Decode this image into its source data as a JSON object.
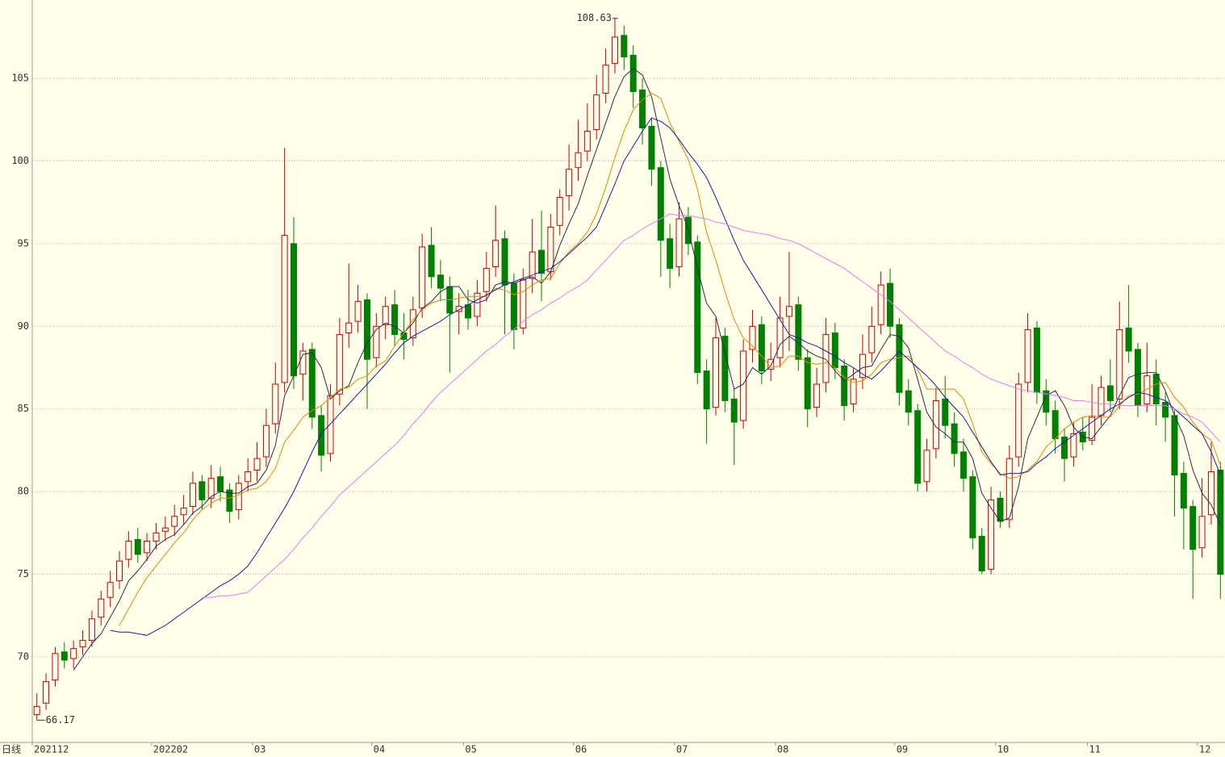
{
  "chart_data": {
    "type": "candlestick",
    "period_label": "日线",
    "categories": [
      "202112",
      null,
      null,
      null,
      null,
      null,
      null,
      null,
      null,
      null,
      null,
      null,
      null,
      "202202",
      null,
      null,
      null,
      null,
      null,
      null,
      null,
      null,
      null,
      null,
      "03",
      null,
      null,
      null,
      null,
      null,
      null,
      null,
      null,
      null,
      null,
      null,
      null,
      "04",
      null,
      null,
      null,
      null,
      null,
      null,
      null,
      null,
      null,
      "05",
      null,
      null,
      null,
      null,
      null,
      null,
      null,
      null,
      null,
      null,
      null,
      "06",
      null,
      null,
      null,
      null,
      null,
      null,
      null,
      null,
      null,
      null,
      "07",
      null,
      null,
      null,
      null,
      null,
      null,
      null,
      null,
      null,
      null,
      "08",
      null,
      null,
      null,
      null,
      null,
      null,
      null,
      null,
      null,
      null,
      null,
      null,
      "09",
      null,
      null,
      null,
      null,
      null,
      null,
      null,
      null,
      null,
      null,
      "10",
      null,
      null,
      null,
      null,
      null,
      null,
      null,
      null,
      null,
      "11",
      null,
      null,
      null,
      null,
      null,
      null,
      null,
      null,
      null,
      null,
      null,
      "12",
      null,
      null
    ],
    "open": [
      66.5,
      67.2,
      68.6,
      70.3,
      69.9,
      70.6,
      71.0,
      72.4,
      73.6,
      74.6,
      75.9,
      77.1,
      76.3,
      77.0,
      77.6,
      77.9,
      78.6,
      79.1,
      80.6,
      79.6,
      80.9,
      80.1,
      78.9,
      80.6,
      81.3,
      82.1,
      84.1,
      86.6,
      95.0,
      87.1,
      88.6,
      84.6,
      82.3,
      85.9,
      89.6,
      90.3,
      91.6,
      88.1,
      90.1,
      91.3,
      89.6,
      89.3,
      91.1,
      94.9,
      93.1,
      92.4,
      90.9,
      91.3,
      90.6,
      92.1,
      93.6,
      95.3,
      92.6,
      89.9,
      92.9,
      94.6,
      93.3,
      96.1,
      97.9,
      99.6,
      100.6,
      101.9,
      104.1,
      105.9,
      107.6,
      106.4,
      104.3,
      102.1,
      99.6,
      95.3,
      93.6,
      96.6,
      95.1,
      87.3,
      85.1,
      89.4,
      85.6,
      84.3,
      88.6,
      90.1,
      87.4,
      88.1,
      90.6,
      91.3,
      88.1,
      85.1,
      86.6,
      89.6,
      87.6,
      85.3,
      86.9,
      88.4,
      90.1,
      92.6,
      90.1,
      86.1,
      84.9,
      80.6,
      82.6,
      85.6,
      84.1,
      82.4,
      80.9,
      77.3,
      75.3,
      79.6,
      78.3,
      82.1,
      86.6,
      89.9,
      86.1,
      84.9,
      83.3,
      82.1,
      83.6,
      83.1,
      84.6,
      86.4,
      85.6,
      89.9,
      88.6,
      85.3,
      87.1,
      85.4,
      84.6,
      81.1,
      79.1,
      76.6,
      78.6,
      81.3
    ],
    "high": [
      67.8,
      69.0,
      70.6,
      70.9,
      71.0,
      71.6,
      72.8,
      74.0,
      75.2,
      76.4,
      77.6,
      77.8,
      77.5,
      78.1,
      78.5,
      79.2,
      79.8,
      81.2,
      81.0,
      81.6,
      81.5,
      80.5,
      81.0,
      82.0,
      83.0,
      85.0,
      87.8,
      100.8,
      96.6,
      89.0,
      89.0,
      85.2,
      86.5,
      90.5,
      93.8,
      92.5,
      92.0,
      90.8,
      91.8,
      92.2,
      90.8,
      91.8,
      95.6,
      96.0,
      94.0,
      93.0,
      92.0,
      92.2,
      92.8,
      94.5,
      97.3,
      95.8,
      93.2,
      93.5,
      96.5,
      97.0,
      96.8,
      98.3,
      101.0,
      102.5,
      103.5,
      105.2,
      106.8,
      108.63,
      108.2,
      107.0,
      105.0,
      102.6,
      100.0,
      96.2,
      97.5,
      97.2,
      95.5,
      88.0,
      90.5,
      89.9,
      86.2,
      89.2,
      91.0,
      90.6,
      89.0,
      91.8,
      94.5,
      91.8,
      88.6,
      87.5,
      90.5,
      90.2,
      88.0,
      87.5,
      89.5,
      91.2,
      93.3,
      93.5,
      90.5,
      86.8,
      85.3,
      83.2,
      86.3,
      87.0,
      84.8,
      83.2,
      81.3,
      77.8,
      80.3,
      80.0,
      82.8,
      87.2,
      90.8,
      90.3,
      86.8,
      85.5,
      83.8,
      84.2,
      84.5,
      86.5,
      87.0,
      88.0,
      91.5,
      92.5,
      89.0,
      89.0,
      88.0,
      86.0,
      85.0,
      81.8,
      79.5,
      80.8,
      83.0,
      81.8
    ],
    "low": [
      66.17,
      66.8,
      68.2,
      69.3,
      69.3,
      70.1,
      70.6,
      71.9,
      73.0,
      74.1,
      75.4,
      75.7,
      75.8,
      76.5,
      77.0,
      77.3,
      78.0,
      78.6,
      78.9,
      79.0,
      79.4,
      78.1,
      78.3,
      80.0,
      80.6,
      81.5,
      83.5,
      86.0,
      86.2,
      85.5,
      83.8,
      81.2,
      81.8,
      85.2,
      88.7,
      89.6,
      85.0,
      87.5,
      89.2,
      88.8,
      88.0,
      88.8,
      90.5,
      92.3,
      91.5,
      87.2,
      89.5,
      89.8,
      90.0,
      91.5,
      93.0,
      89.5,
      88.6,
      89.5,
      92.0,
      91.5,
      92.8,
      95.5,
      97.0,
      98.8,
      100.0,
      101.3,
      103.5,
      105.3,
      105.5,
      103.2,
      101.0,
      98.5,
      93.0,
      92.3,
      93.0,
      94.3,
      86.5,
      82.9,
      84.6,
      84.8,
      81.6,
      83.8,
      87.8,
      86.5,
      86.7,
      87.5,
      88.5,
      87.3,
      83.9,
      84.5,
      86.0,
      86.8,
      84.3,
      84.8,
      86.2,
      87.8,
      89.5,
      89.3,
      85.2,
      84.0,
      80.0,
      80.0,
      82.0,
      83.2,
      81.5,
      80.0,
      76.5,
      75.0,
      75.0,
      77.8,
      77.8,
      81.5,
      86.0,
      85.3,
      84.0,
      82.3,
      80.6,
      81.5,
      82.5,
      82.8,
      84.0,
      84.8,
      85.0,
      87.8,
      84.5,
      84.8,
      84.0,
      83.0,
      78.5,
      76.5,
      73.5,
      76.0,
      78.0,
      73.5
    ],
    "close": [
      67.0,
      68.5,
      70.2,
      69.8,
      70.5,
      71.0,
      72.3,
      73.5,
      74.5,
      75.8,
      77.0,
      76.2,
      77.0,
      77.5,
      77.8,
      78.5,
      79.0,
      80.5,
      79.5,
      80.8,
      80.0,
      78.8,
      80.5,
      81.2,
      82.0,
      84.0,
      86.5,
      95.5,
      87.0,
      88.5,
      84.5,
      82.2,
      85.8,
      89.5,
      90.2,
      91.5,
      88.0,
      90.0,
      91.2,
      89.5,
      89.2,
      91.0,
      94.8,
      93.0,
      92.3,
      90.8,
      91.2,
      90.5,
      92.0,
      93.5,
      95.2,
      92.5,
      89.8,
      92.8,
      94.5,
      93.2,
      96.0,
      97.8,
      99.5,
      100.5,
      101.8,
      104.0,
      105.8,
      107.5,
      106.3,
      104.2,
      102.0,
      99.5,
      95.2,
      93.5,
      96.5,
      95.0,
      87.2,
      85.0,
      89.3,
      85.5,
      84.2,
      88.5,
      90.0,
      87.3,
      88.0,
      90.5,
      91.2,
      88.0,
      85.0,
      86.5,
      89.5,
      87.5,
      85.2,
      86.8,
      88.3,
      90.0,
      92.5,
      90.0,
      86.0,
      84.8,
      80.5,
      82.5,
      85.5,
      84.0,
      82.3,
      80.8,
      77.2,
      75.2,
      79.5,
      78.2,
      82.0,
      86.5,
      89.8,
      86.0,
      84.8,
      83.2,
      82.0,
      83.5,
      83.0,
      84.5,
      86.3,
      85.5,
      89.8,
      88.5,
      85.2,
      87.0,
      85.3,
      84.5,
      81.0,
      79.0,
      76.5,
      78.5,
      81.2,
      75.0
    ],
    "up_color": "#c80000",
    "down_color": "#008000",
    "series": [
      {
        "color": "#2a2a55",
        "values": [
          null,
          null,
          null,
          null,
          69.2,
          70.0,
          70.8,
          71.4,
          72.4,
          73.4,
          74.6,
          75.2,
          75.9,
          76.7,
          77.1,
          77.4,
          78.0,
          78.7,
          79.1,
          79.7,
          80.0,
          79.9,
          79.9,
          80.3,
          80.5,
          81.3,
          82.8,
          85.8,
          87.0,
          88.3,
          88.4,
          87.5,
          85.6,
          86.1,
          86.4,
          87.8,
          89.0,
          89.8,
          90.2,
          90.0,
          89.6,
          90.2,
          91.1,
          91.5,
          92.1,
          92.4,
          92.4,
          91.6,
          91.4,
          91.6,
          92.5,
          92.7,
          92.6,
          92.8,
          93.0,
          92.6,
          93.3,
          94.9,
          96.2,
          97.4,
          99.1,
          100.7,
          102.3,
          103.9,
          105.1,
          105.6,
          105.2,
          103.9,
          101.4,
          98.9,
          97.3,
          95.9,
          93.5,
          91.4,
          90.6,
          88.4,
          86.2,
          86.5,
          87.5,
          87.1,
          87.6,
          88.9,
          89.4,
          89.0,
          88.5,
          88.2,
          88.0,
          87.3,
          86.7,
          87.1,
          87.5,
          87.6,
          88.6,
          89.5,
          89.4,
          88.7,
          86.8,
          84.8,
          83.9,
          83.5,
          83.0,
          83.0,
          82.0,
          79.9,
          79.0,
          78.2,
          78.4,
          80.3,
          83.2,
          84.5,
          85.8,
          86.1,
          85.2,
          83.9,
          83.3,
          83.2,
          83.9,
          84.6,
          85.8,
          86.9,
          87.1,
          87.2,
          87.2,
          86.1,
          84.6,
          83.4,
          81.3,
          79.9,
          79.2,
          78.0
        ]
      },
      {
        "color": "#e08a00",
        "values": [
          null,
          null,
          null,
          null,
          null,
          null,
          null,
          null,
          null,
          71.9,
          72.9,
          73.9,
          74.8,
          75.5,
          76.2,
          76.9,
          77.5,
          78.3,
          78.9,
          79.3,
          79.6,
          79.6,
          79.8,
          80.1,
          80.2,
          80.6,
          81.4,
          83.0,
          83.7,
          84.5,
          84.9,
          85.2,
          85.7,
          86.2,
          86.3,
          86.8,
          87.0,
          87.6,
          87.9,
          88.8,
          89.6,
          90.4,
          91.0,
          91.4,
          91.6,
          91.6,
          91.7,
          91.8,
          91.8,
          91.8,
          92.3,
          92.2,
          91.9,
          92.1,
          92.5,
          92.8,
          92.9,
          93.8,
          94.5,
          95.0,
          95.7,
          96.8,
          98.4,
          100.2,
          101.8,
          103.1,
          103.7,
          104.1,
          103.8,
          102.3,
          101.2,
          100.1,
          98.3,
          95.7,
          94.0,
          92.1,
          90.4,
          89.3,
          88.8,
          88.2,
          87.5,
          87.6,
          88.2,
          88.2,
          87.8,
          87.7,
          87.8,
          87.5,
          86.9,
          86.6,
          86.7,
          87.1,
          87.8,
          88.0,
          88.1,
          88.2,
          87.4,
          86.2,
          86.2,
          86.2,
          86.2,
          85.6,
          84.1,
          82.4,
          81.7,
          81.1,
          80.8,
          80.9,
          81.3,
          81.8,
          82.7,
          83.2,
          83.8,
          84.2,
          84.5,
          84.6,
          84.5,
          84.5,
          85.2,
          85.8,
          85.9,
          86.2,
          86.5,
          86.6,
          85.7,
          85.1,
          84.2,
          83.5,
          83.1,
          81.6
        ]
      },
      {
        "color": "#1c1ca0",
        "values": [
          null,
          null,
          null,
          null,
          null,
          null,
          null,
          null,
          71.6,
          71.5,
          71.5,
          71.4,
          71.3,
          71.6,
          71.9,
          72.3,
          72.7,
          73.1,
          73.5,
          73.9,
          74.3,
          74.6,
          75.0,
          75.5,
          76.3,
          77.2,
          78.1,
          79.0,
          80.0,
          81.2,
          82.4,
          83.5,
          84.1,
          84.7,
          85.3,
          85.9,
          86.5,
          87.1,
          87.7,
          88.4,
          89.0,
          89.4,
          89.7,
          90.0,
          90.3,
          90.7,
          91.0,
          91.3,
          91.6,
          91.9,
          92.2,
          92.5,
          92.7,
          92.9,
          93.1,
          93.3,
          93.5,
          93.9,
          94.4,
          94.9,
          95.4,
          96.0,
          97.3,
          98.6,
          100.0,
          100.9,
          101.8,
          102.6,
          102.4,
          102.0,
          101.3,
          100.5,
          99.8,
          99.0,
          97.8,
          96.5,
          95.2,
          94.0,
          93.1,
          92.2,
          91.3,
          90.4,
          89.5,
          89.3,
          89.0,
          88.8,
          88.5,
          88.2,
          87.8,
          87.5,
          87.1,
          86.8,
          87.3,
          87.9,
          88.5,
          88.0,
          87.5,
          87.0,
          86.4,
          85.7,
          85.1,
          84.5,
          83.6,
          82.7,
          81.8,
          81.0,
          81.1,
          81.1,
          81.2,
          81.7,
          82.1,
          82.6,
          83.0,
          83.4,
          83.8,
          84.2,
          84.6,
          85.0,
          85.3,
          85.7,
          86.0,
          85.9,
          85.7,
          85.5,
          85.0,
          84.5,
          84.0,
          83.5,
          82.4,
          81.0
        ]
      },
      {
        "color": "#e07ef0",
        "values": [
          null,
          null,
          null,
          null,
          null,
          null,
          null,
          null,
          null,
          null,
          null,
          null,
          null,
          null,
          null,
          null,
          null,
          null,
          73.6,
          73.6,
          73.7,
          73.7,
          73.8,
          73.9,
          74.4,
          74.9,
          75.4,
          75.9,
          76.5,
          77.2,
          77.8,
          78.5,
          79.1,
          79.8,
          80.3,
          80.8,
          81.3,
          81.8,
          82.3,
          82.8,
          83.4,
          84.1,
          84.7,
          85.4,
          86.0,
          86.5,
          87.0,
          87.5,
          88.0,
          88.5,
          88.9,
          89.4,
          89.8,
          90.3,
          90.7,
          91.0,
          91.4,
          91.7,
          92.1,
          92.4,
          92.8,
          93.4,
          94.0,
          94.6,
          95.2,
          95.5,
          95.9,
          96.2,
          96.5,
          96.8,
          96.7,
          96.7,
          96.6,
          96.5,
          96.3,
          96.2,
          96.0,
          95.8,
          95.7,
          95.6,
          95.5,
          95.3,
          95.2,
          95.0,
          94.7,
          94.4,
          94.1,
          93.8,
          93.5,
          93.1,
          92.7,
          92.3,
          91.9,
          91.5,
          91.0,
          90.5,
          90.0,
          89.5,
          89.0,
          88.5,
          88.2,
          87.8,
          87.5,
          87.1,
          86.8,
          86.6,
          86.4,
          86.2,
          86.1,
          86.0,
          85.9,
          85.8,
          85.7,
          85.5,
          85.5,
          85.4,
          85.3,
          85.3,
          85.2,
          85.2,
          85.2,
          85.2,
          85.2,
          85.2,
          85.0,
          84.7,
          84.5,
          84.2,
          83.6,
          83.0
        ]
      }
    ],
    "ylim": [
      64.82,
      109.74
    ],
    "yticks": [
      70,
      75,
      80,
      85,
      90,
      95,
      100,
      105
    ],
    "grid": true
  }
}
